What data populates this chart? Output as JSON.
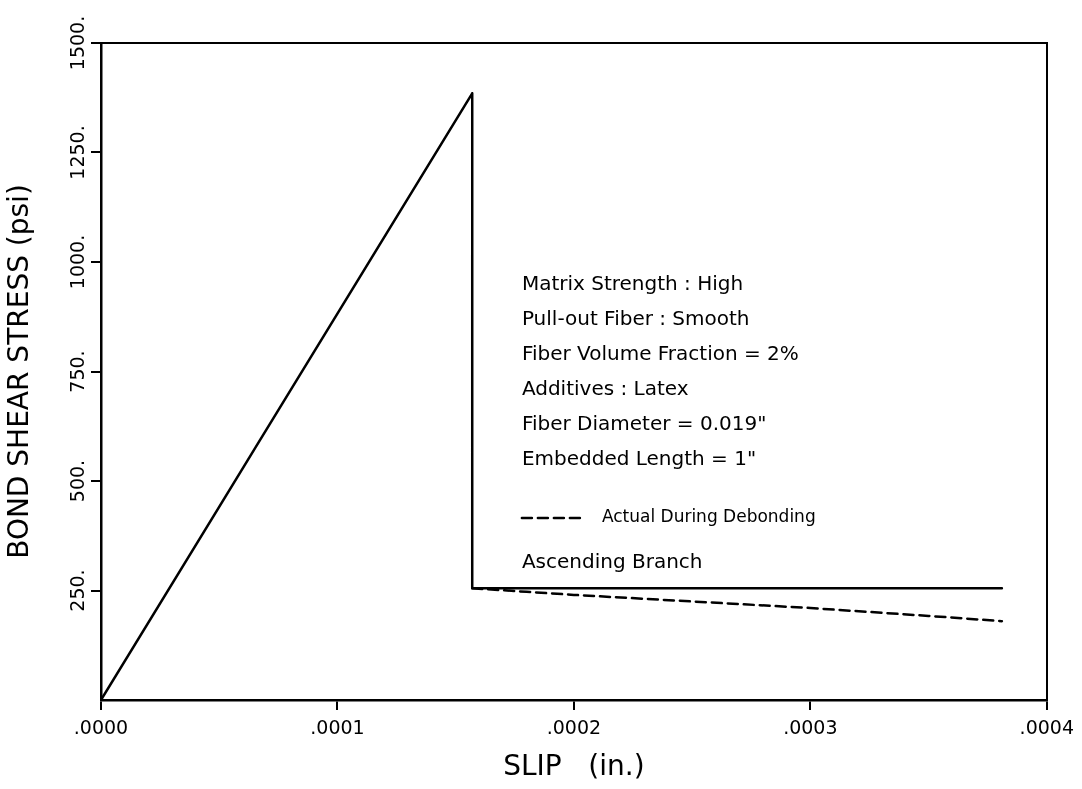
{
  "chart_data": {
    "type": "line",
    "xlabel": "SLIP   (in.)",
    "ylabel": "BOND SHEAR STRESS (psi)",
    "xlim": [
      0,
      0.0004
    ],
    "xticks": [
      {
        "value": 0,
        "label": ".0000"
      },
      {
        "value": 0.0001,
        "label": ".0001"
      },
      {
        "value": 0.0002,
        "label": ".0002"
      },
      {
        "value": 0.0003,
        "label": ".0003"
      },
      {
        "value": 0.0004,
        "label": ".0004"
      }
    ],
    "ylim": [
      0,
      1500
    ],
    "yticks": [
      {
        "value": 250,
        "label": "250."
      },
      {
        "value": 500,
        "label": "500."
      },
      {
        "value": 750,
        "label": "750."
      },
      {
        "value": 1000,
        "label": "1000."
      },
      {
        "value": 1250,
        "label": "1250."
      },
      {
        "value": 1500,
        "label": "1500."
      }
    ],
    "grid": false,
    "legend": "center",
    "marker": "none",
    "annotations": [
      "Matrix Strength : High",
      "Pull-out Fiber : Smooth",
      "Fiber Volume Fraction = 2%",
      "Additives : Latex",
      "Fiber Diameter = 0.019\"",
      "Embedded Length = 1\""
    ],
    "series": [
      {
        "name": "Ascending Branch",
        "color": "#000000",
        "line_style": "solid",
        "x": [
          0,
          0.000157,
          0.000157,
          0.000381
        ],
        "values": [
          0,
          1385,
          255,
          255
        ]
      },
      {
        "name": "Actual During Debonding",
        "color": "#000000",
        "line_style": "dashed",
        "x": [
          0.000157,
          0.00018,
          0.0002,
          0.00025,
          0.0003,
          0.00035,
          0.000381
        ],
        "values": [
          255,
          247,
          240,
          225,
          210,
          192,
          180
        ]
      }
    ]
  }
}
